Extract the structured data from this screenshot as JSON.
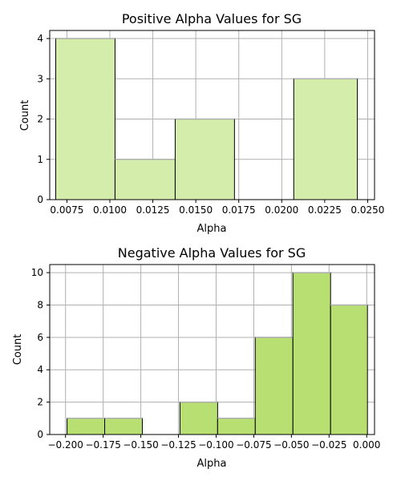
{
  "chart_data": [
    {
      "type": "bar",
      "title": "Positive Alpha Values for SG",
      "xlabel": "Alpha",
      "ylabel": "Count",
      "xlim": [
        0.0065,
        0.0254
      ],
      "ylim": [
        0,
        4.2
      ],
      "xticks": [
        "0.0075",
        "0.0100",
        "0.0125",
        "0.0150",
        "0.0175",
        "0.0200",
        "0.0225",
        "0.0250"
      ],
      "yticks": [
        "0",
        "1",
        "2",
        "3",
        "4"
      ],
      "grid": true,
      "bar_color": "#d4edaa",
      "bins": [
        {
          "x0": 0.00685,
          "x1": 0.0103,
          "count": 4
        },
        {
          "x0": 0.0103,
          "x1": 0.0138,
          "count": 1
        },
        {
          "x0": 0.0138,
          "x1": 0.01725,
          "count": 2
        },
        {
          "x0": 0.01725,
          "x1": 0.0207,
          "count": 0
        },
        {
          "x0": 0.0207,
          "x1": 0.0244,
          "count": 3
        }
      ]
    },
    {
      "type": "bar",
      "title": "Negative Alpha Values for SG",
      "xlabel": "Alpha",
      "ylabel": "Count",
      "xlim": [
        -0.2105,
        0.0052
      ],
      "ylim": [
        0,
        10.5
      ],
      "xticks": [
        "−0.200",
        "−0.175",
        "−0.150",
        "−0.125",
        "−0.100",
        "−0.075",
        "−0.050",
        "−0.025",
        "0.000"
      ],
      "yticks": [
        "0",
        "2",
        "4",
        "6",
        "8",
        "10"
      ],
      "grid": true,
      "bar_color": "#b8df72",
      "bins": [
        {
          "x0": -0.199,
          "x1": -0.174,
          "count": 1
        },
        {
          "x0": -0.174,
          "x1": -0.149,
          "count": 1
        },
        {
          "x0": -0.149,
          "x1": -0.124,
          "count": 0
        },
        {
          "x0": -0.124,
          "x1": -0.099,
          "count": 2
        },
        {
          "x0": -0.099,
          "x1": -0.074,
          "count": 1
        },
        {
          "x0": -0.074,
          "x1": -0.049,
          "count": 6
        },
        {
          "x0": -0.049,
          "x1": -0.024,
          "count": 10
        },
        {
          "x0": -0.024,
          "x1": 0.0005,
          "count": 8
        }
      ]
    }
  ]
}
